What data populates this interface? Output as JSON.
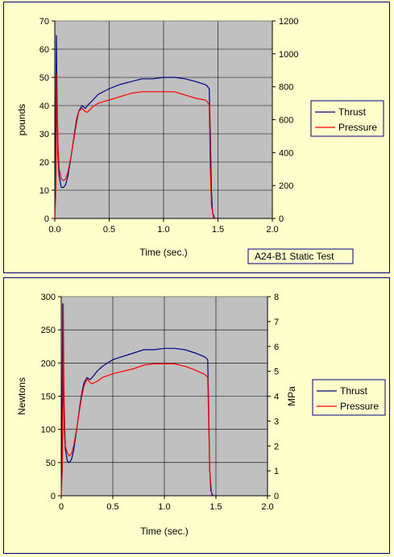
{
  "chart_data": [
    {
      "type": "line",
      "xlabel": "Time (sec.)",
      "ylabel": "pounds",
      "y2label": "",
      "annotation": "A24-B1 Static Test",
      "xlim": [
        0,
        2
      ],
      "x_ticks": [
        "0.0",
        "0.5",
        "1.0",
        "1.5",
        "2.0"
      ],
      "ylim": [
        0,
        70
      ],
      "y_ticks": [
        "0",
        "10",
        "20",
        "30",
        "40",
        "50",
        "60",
        "70"
      ],
      "y2lim": [
        0,
        1200
      ],
      "y2_ticks": [
        "0",
        "200",
        "400",
        "600",
        "800",
        "1000",
        "1200"
      ],
      "grid": true,
      "legend": "right",
      "series": [
        {
          "name": "Thrust",
          "color": "#000080",
          "axis": "left",
          "x": [
            0,
            0.008,
            0.015,
            0.02,
            0.025,
            0.03,
            0.04,
            0.06,
            0.08,
            0.1,
            0.12,
            0.15,
            0.18,
            0.2,
            0.22,
            0.25,
            0.28,
            0.3,
            0.35,
            0.4,
            0.45,
            0.5,
            0.6,
            0.7,
            0.8,
            0.9,
            1.0,
            1.1,
            1.2,
            1.3,
            1.38,
            1.4,
            1.42,
            1.43,
            1.44,
            1.45,
            1.47
          ],
          "y": [
            0,
            25,
            65,
            40,
            32,
            22,
            15,
            11,
            11,
            12,
            15,
            22,
            30,
            35,
            38,
            40,
            39,
            40,
            42,
            44,
            45,
            46,
            47.5,
            48.5,
            49.5,
            49.5,
            50,
            50,
            49.5,
            48.5,
            47.5,
            47,
            46,
            30,
            10,
            2,
            0
          ]
        },
        {
          "name": "Pressure",
          "color": "#ff0000",
          "axis": "right",
          "x": [
            0,
            0.01,
            0.02,
            0.025,
            0.03,
            0.04,
            0.06,
            0.08,
            0.1,
            0.12,
            0.15,
            0.18,
            0.2,
            0.22,
            0.25,
            0.28,
            0.3,
            0.35,
            0.4,
            0.5,
            0.6,
            0.7,
            0.8,
            0.9,
            1.0,
            1.1,
            1.2,
            1.3,
            1.38,
            1.4,
            1.42,
            1.43,
            1.44,
            1.46
          ],
          "y": [
            0,
            150,
            880,
            600,
            450,
            300,
            240,
            230,
            240,
            280,
            380,
            500,
            580,
            650,
            670,
            650,
            645,
            680,
            700,
            720,
            740,
            760,
            770,
            770,
            770,
            770,
            750,
            730,
            720,
            710,
            690,
            300,
            80,
            0
          ]
        }
      ]
    },
    {
      "type": "line",
      "xlabel": "Time (sec.)",
      "ylabel": "Newtons",
      "y2label": "MPa",
      "annotation": "",
      "xlim": [
        0,
        2
      ],
      "x_ticks": [
        "0",
        "0.5",
        "1.0",
        "1.5",
        "2.0"
      ],
      "ylim": [
        0,
        300
      ],
      "y_ticks": [
        "0",
        "50",
        "100",
        "150",
        "200",
        "250",
        "300"
      ],
      "y2lim": [
        0,
        8
      ],
      "y2_ticks": [
        "0",
        "1",
        "2",
        "3",
        "4",
        "5",
        "6",
        "7",
        "8"
      ],
      "grid": true,
      "legend": "right",
      "series": [
        {
          "name": "Thrust",
          "color": "#000080",
          "axis": "left",
          "x": [
            0,
            0.008,
            0.015,
            0.02,
            0.025,
            0.03,
            0.04,
            0.06,
            0.08,
            0.1,
            0.12,
            0.15,
            0.18,
            0.2,
            0.22,
            0.25,
            0.28,
            0.3,
            0.35,
            0.4,
            0.45,
            0.5,
            0.6,
            0.7,
            0.8,
            0.9,
            1.0,
            1.1,
            1.2,
            1.3,
            1.38,
            1.4,
            1.42,
            1.43,
            1.44,
            1.45,
            1.47
          ],
          "y": [
            0,
            110,
            290,
            180,
            140,
            100,
            70,
            52,
            50,
            55,
            68,
            100,
            135,
            155,
            170,
            178,
            175,
            178,
            188,
            195,
            200,
            205,
            210,
            215,
            220,
            220,
            222,
            222,
            220,
            215,
            210,
            208,
            205,
            130,
            40,
            8,
            0
          ]
        },
        {
          "name": "Pressure",
          "color": "#ff0000",
          "axis": "right",
          "x": [
            0,
            0.01,
            0.02,
            0.025,
            0.03,
            0.04,
            0.06,
            0.08,
            0.1,
            0.12,
            0.15,
            0.18,
            0.2,
            0.22,
            0.25,
            0.28,
            0.3,
            0.35,
            0.4,
            0.5,
            0.6,
            0.7,
            0.8,
            0.9,
            1.0,
            1.1,
            1.2,
            1.3,
            1.38,
            1.4,
            1.42,
            1.43,
            1.44,
            1.46
          ],
          "y": [
            0,
            1.0,
            7.7,
            5.0,
            3.5,
            2.0,
            1.7,
            1.6,
            1.7,
            2.0,
            2.7,
            3.5,
            4.0,
            4.4,
            4.7,
            4.55,
            4.5,
            4.6,
            4.75,
            4.9,
            5.0,
            5.1,
            5.25,
            5.3,
            5.3,
            5.3,
            5.2,
            5.05,
            4.9,
            4.85,
            4.75,
            3.0,
            1.0,
            0
          ]
        }
      ]
    }
  ]
}
